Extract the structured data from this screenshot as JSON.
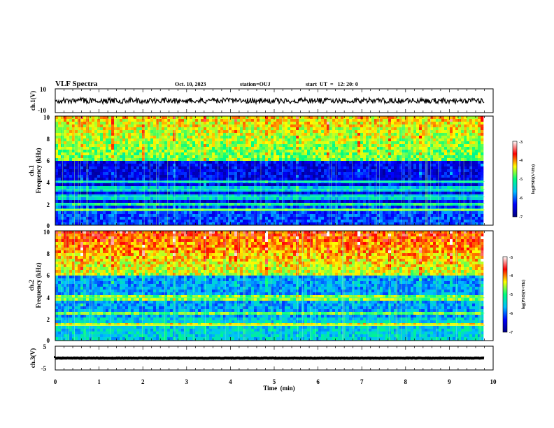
{
  "header": {
    "title": "VLF Spectra",
    "date": "Oct. 10, 2023",
    "station": "station=OUJ",
    "start": "start  UT  =   12: 20: 0"
  },
  "time_axis": {
    "label": "Time  (min)",
    "ticks": [
      "0",
      "1",
      "2",
      "3",
      "4",
      "5",
      "6",
      "7",
      "8",
      "9",
      "10"
    ]
  },
  "panels": {
    "ch1_wave": {
      "ylabel": "ch.1(V)",
      "ticks": [
        "10",
        "-10"
      ]
    },
    "ch1_spec": {
      "ylabel_ch": "ch.1",
      "ylabel": "Frequency  (kHz)",
      "ticks": [
        "10",
        "8",
        "6",
        "4",
        "2",
        "0"
      ]
    },
    "ch2_spec": {
      "ylabel_ch": "ch.2",
      "ylabel": "Frequency  (kHz)",
      "ticks": [
        "10",
        "8",
        "6",
        "4",
        "2",
        "0"
      ]
    },
    "ch3_wave": {
      "ylabel": "ch.3(V)",
      "ticks": [
        "5",
        "-5"
      ]
    }
  },
  "colorbar": {
    "label": "log(PSD)(V²/Hz)",
    "ticks": [
      "-3",
      "-4",
      "-5",
      "-6",
      "-7"
    ],
    "colors": [
      "#00007f",
      "#0000ff",
      "#00bfff",
      "#00ff80",
      "#ffff00",
      "#ff0000",
      "#ffffff"
    ]
  },
  "chart_data": [
    {
      "type": "line",
      "title": "VLF Spectra",
      "ylabel": "ch.1(V)",
      "xlabel": "Time  (min)",
      "xlim": [
        0,
        10
      ],
      "ylim": [
        -10,
        10
      ],
      "series": [
        {
          "x": [
            0,
            9.8
          ],
          "y": [
            0,
            0
          ]
        }
      ]
    },
    {
      "type": "heatmap",
      "ylabel": "Frequency  (kHz)",
      "xlim": [
        0,
        10
      ],
      "ylim": [
        0,
        10
      ],
      "zlim": [
        -7,
        -3
      ],
      "bands_khz": [
        1.4,
        2.0,
        2.6,
        3.3,
        4.0
      ],
      "data_end_min": 9.8
    },
    {
      "type": "heatmap",
      "ylabel": "Frequency  (kHz)",
      "xlim": [
        0,
        10
      ],
      "ylim": [
        0,
        10
      ],
      "zlim": [
        -7,
        -3
      ],
      "bands_khz": [
        1.4,
        2.5,
        3.9
      ],
      "data_end_min": 9.8
    },
    {
      "type": "line",
      "ylabel": "ch.3(V)",
      "xlabel": "Time  (min)",
      "xlim": [
        0,
        10
      ],
      "ylim": [
        -5,
        5
      ],
      "series": [
        {
          "x": [
            0,
            9.8
          ],
          "y": [
            0,
            0
          ]
        }
      ]
    }
  ]
}
